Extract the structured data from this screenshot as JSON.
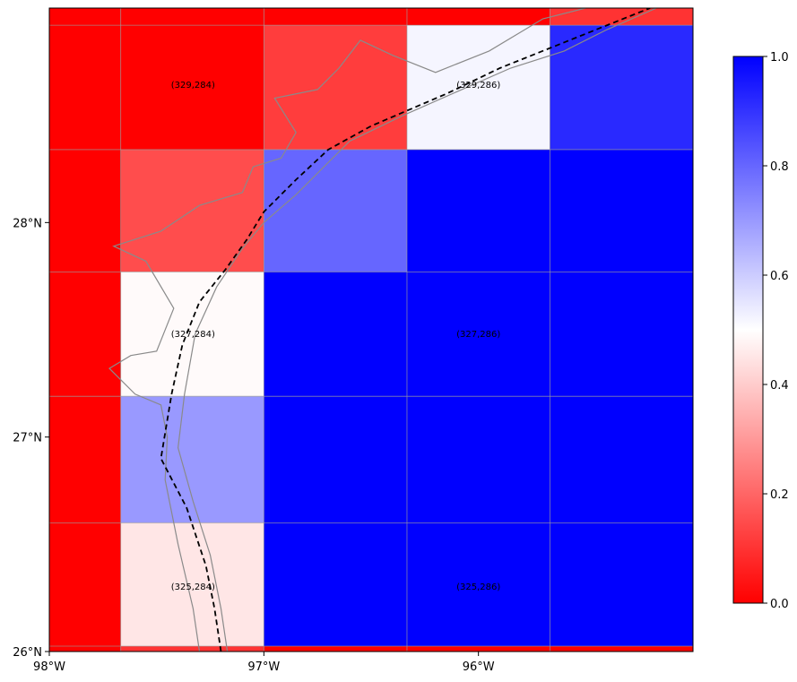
{
  "chart_data": {
    "type": "heatmap",
    "projection": "plate-carree",
    "xlim": [
      -98.0,
      -95.0
    ],
    "ylim": [
      26.0,
      29.0
    ],
    "x_ticks": [
      {
        "value": -98.0,
        "label": "98°W"
      },
      {
        "value": -97.0,
        "label": "97°W"
      },
      {
        "value": -96.0,
        "label": "96°W"
      }
    ],
    "y_ticks": [
      {
        "value": 26.0,
        "label": "26°N"
      },
      {
        "value": 27.0,
        "label": "27°N"
      },
      {
        "value": 28.0,
        "label": "28°N"
      }
    ],
    "grid_columns": [
      -98.0,
      -97.667,
      -97.0,
      -96.333,
      -95.667,
      -95.0
    ],
    "grid_rows": [
      26.0,
      26.025,
      26.6,
      27.19,
      27.77,
      28.34,
      28.92,
      29.0
    ],
    "cell_values": [
      [
        0.0,
        0.1,
        0.0,
        0.0,
        0.0
      ],
      [
        0.0,
        0.45,
        1.0,
        1.0,
        1.0
      ],
      [
        0.0,
        0.7,
        1.0,
        1.0,
        1.0
      ],
      [
        0.0,
        0.49,
        1.0,
        1.0,
        1.0
      ],
      [
        0.0,
        0.15,
        0.8,
        1.0,
        1.0
      ],
      [
        0.0,
        0.0,
        0.12,
        0.52,
        0.92
      ],
      [
        0.0,
        0.0,
        0.0,
        0.0,
        0.1
      ]
    ],
    "cell_labels": [
      {
        "text": "(325,284)",
        "lon": -97.33,
        "lat": 26.3
      },
      {
        "text": "(325,286)",
        "lon": -96.0,
        "lat": 26.3
      },
      {
        "text": "(327,284)",
        "lon": -97.33,
        "lat": 27.48
      },
      {
        "text": "(327,286)",
        "lon": -96.0,
        "lat": 27.48
      },
      {
        "text": "(329,284)",
        "lon": -97.33,
        "lat": 28.64
      },
      {
        "text": "(329,286)",
        "lon": -96.0,
        "lat": 28.64
      }
    ],
    "colorbar": {
      "range": [
        0.0,
        1.0
      ],
      "ticks": [
        0.0,
        0.2,
        0.4,
        0.6,
        0.8,
        1.0
      ],
      "tick_labels": [
        "0.0",
        "0.2",
        "0.4",
        "0.6",
        "0.8",
        "1.0"
      ],
      "colormap": [
        "#ff0000",
        "#ffffff",
        "#0000ff"
      ]
    },
    "boundary_line": [
      [
        -97.2,
        26.0
      ],
      [
        -97.23,
        26.2
      ],
      [
        -97.27,
        26.4
      ],
      [
        -97.36,
        26.67
      ],
      [
        -97.48,
        26.9
      ],
      [
        -97.43,
        27.2
      ],
      [
        -97.38,
        27.43
      ],
      [
        -97.3,
        27.63
      ],
      [
        -97.18,
        27.78
      ],
      [
        -97.08,
        27.92
      ],
      [
        -97.0,
        28.05
      ],
      [
        -96.85,
        28.2
      ],
      [
        -96.7,
        28.34
      ],
      [
        -96.5,
        28.45
      ],
      [
        -96.15,
        28.6
      ],
      [
        -95.9,
        28.72
      ],
      [
        -95.45,
        28.9
      ],
      [
        -95.2,
        29.0
      ]
    ],
    "coastline": [
      [
        -97.17,
        26.0
      ],
      [
        -97.2,
        26.2
      ],
      [
        -97.25,
        26.45
      ],
      [
        -97.33,
        26.7
      ],
      [
        -97.4,
        26.95
      ],
      [
        -97.37,
        27.2
      ],
      [
        -97.32,
        27.48
      ],
      [
        -97.22,
        27.7
      ],
      [
        -97.1,
        27.88
      ],
      [
        -97.0,
        28.0
      ],
      [
        -96.85,
        28.13
      ],
      [
        -96.7,
        28.28
      ],
      [
        -96.6,
        28.38
      ],
      [
        -96.35,
        28.5
      ],
      [
        -96.1,
        28.61
      ],
      [
        -95.85,
        28.72
      ],
      [
        -95.6,
        28.8
      ],
      [
        -95.4,
        28.9
      ],
      [
        -95.17,
        29.0
      ]
    ],
    "inland_shore": [
      [
        -97.3,
        26.0
      ],
      [
        -97.33,
        26.2
      ],
      [
        -97.4,
        26.5
      ],
      [
        -97.46,
        26.8
      ],
      [
        -97.45,
        27.0
      ],
      [
        -97.48,
        27.15
      ],
      [
        -97.6,
        27.2
      ],
      [
        -97.72,
        27.32
      ],
      [
        -97.62,
        27.38
      ],
      [
        -97.5,
        27.4
      ],
      [
        -97.42,
        27.6
      ],
      [
        -97.55,
        27.82
      ],
      [
        -97.7,
        27.89
      ],
      [
        -97.48,
        27.96
      ],
      [
        -97.3,
        28.08
      ],
      [
        -97.1,
        28.14
      ],
      [
        -97.05,
        28.26
      ],
      [
        -96.92,
        28.3
      ],
      [
        -96.85,
        28.42
      ],
      [
        -96.95,
        28.58
      ],
      [
        -96.75,
        28.62
      ],
      [
        -96.65,
        28.72
      ],
      [
        -96.55,
        28.85
      ],
      [
        -96.4,
        28.78
      ],
      [
        -96.2,
        28.7
      ],
      [
        -95.95,
        28.8
      ],
      [
        -95.7,
        28.95
      ],
      [
        -95.5,
        29.0
      ]
    ]
  }
}
